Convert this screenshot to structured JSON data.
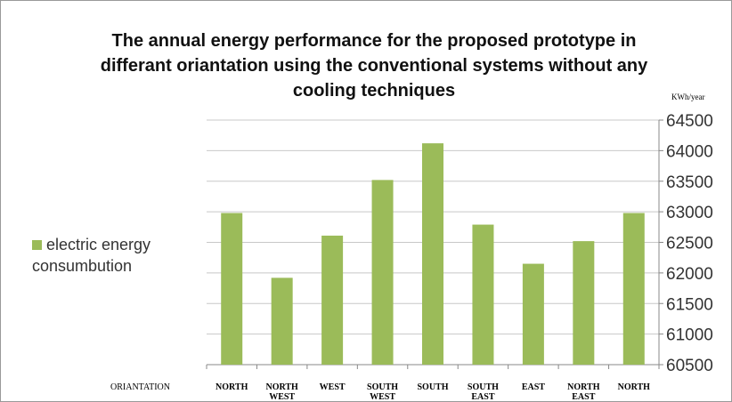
{
  "chart_data": {
    "type": "bar",
    "title": "The annual energy performance for the proposed prototype in differant oriantation using the conventional systems without any cooling techniques",
    "y_axis_label": "KWh/year",
    "x_axis_label": "ORIANTATION",
    "categories": [
      "NORTH",
      "NORTH WEST",
      "WEST",
      "SOUTH WEST",
      "SOUTH",
      "SOUTH EAST",
      "EAST",
      "NORTH EAST",
      "NORTH"
    ],
    "series": [
      {
        "name": "electric energy consumbution",
        "color": "#9bbb59",
        "values": [
          62980,
          61920,
          62610,
          63520,
          64120,
          62790,
          62150,
          62520,
          62980
        ]
      }
    ],
    "ylim": [
      60500,
      64500
    ],
    "yticks": [
      60500,
      61000,
      61500,
      62000,
      62500,
      63000,
      63500,
      64000,
      64500
    ],
    "grid": true,
    "legend": "left",
    "y_axis_side": "right"
  }
}
